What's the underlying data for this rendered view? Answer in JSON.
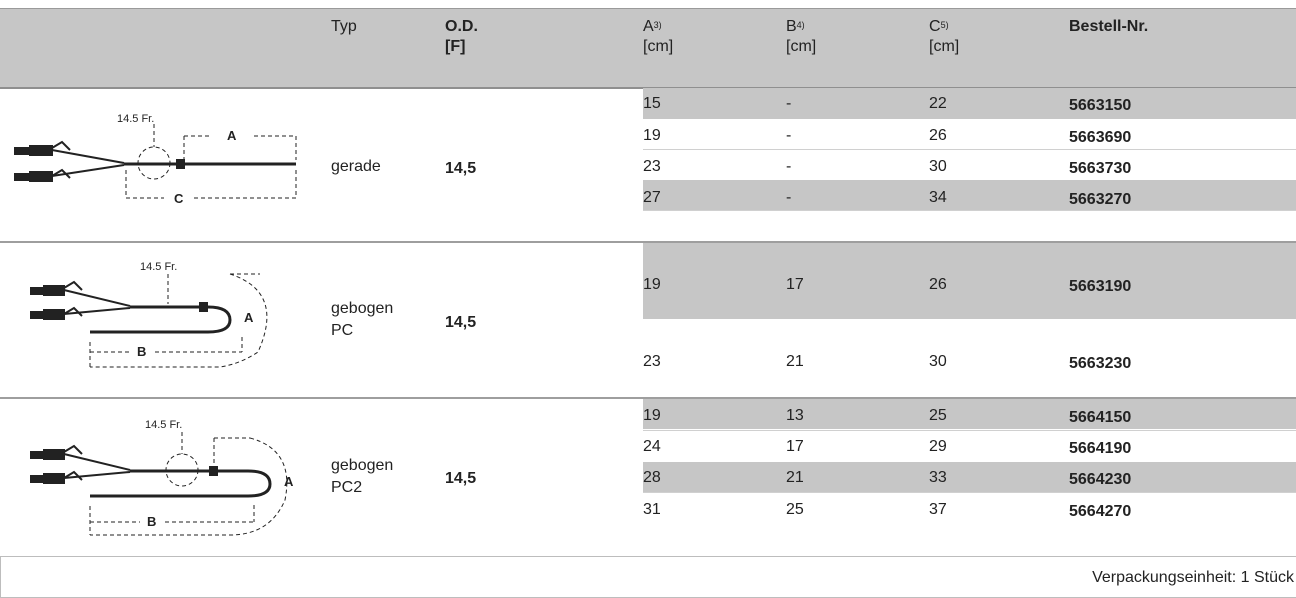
{
  "header": {
    "typ": "Typ",
    "od": "O.D.",
    "od_unit": "[F]",
    "a": "A",
    "a_sup": "3)",
    "a_unit": "[cm]",
    "b": "B",
    "b_sup": "4)",
    "b_unit": "[cm]",
    "c": "C",
    "c_sup": "5)",
    "c_unit": "[cm]",
    "bestell": "Bestell-Nr."
  },
  "diagram_labels": {
    "size": "14.5 Fr.",
    "a": "A",
    "b": "B",
    "c": "C"
  },
  "groups": [
    {
      "typ_line1": "gerade",
      "typ_line2": "",
      "od": "14,5",
      "rows": [
        {
          "a": "15",
          "b": "-",
          "c": "22",
          "nr": "5663150"
        },
        {
          "a": "19",
          "b": "-",
          "c": "26",
          "nr": "5663690"
        },
        {
          "a": "23",
          "b": "-",
          "c": "30",
          "nr": "5663730"
        },
        {
          "a": "27",
          "b": "-",
          "c": "34",
          "nr": "5663270"
        }
      ]
    },
    {
      "typ_line1": "gebogen",
      "typ_line2": "PC",
      "od": "14,5",
      "rows": [
        {
          "a": "19",
          "b": "17",
          "c": "26",
          "nr": "5663190"
        },
        {
          "a": "23",
          "b": "21",
          "c": "30",
          "nr": "5663230"
        }
      ]
    },
    {
      "typ_line1": "gebogen",
      "typ_line2": "PC2",
      "od": "14,5",
      "rows": [
        {
          "a": "19",
          "b": "13",
          "c": "25",
          "nr": "5664150"
        },
        {
          "a": "24",
          "b": "17",
          "c": "29",
          "nr": "5664190"
        },
        {
          "a": "28",
          "b": "21",
          "c": "33",
          "nr": "5664230"
        },
        {
          "a": "31",
          "b": "25",
          "c": "37",
          "nr": "5664270"
        }
      ]
    }
  ],
  "footer": "Verpackungseinheit: 1 Stück"
}
